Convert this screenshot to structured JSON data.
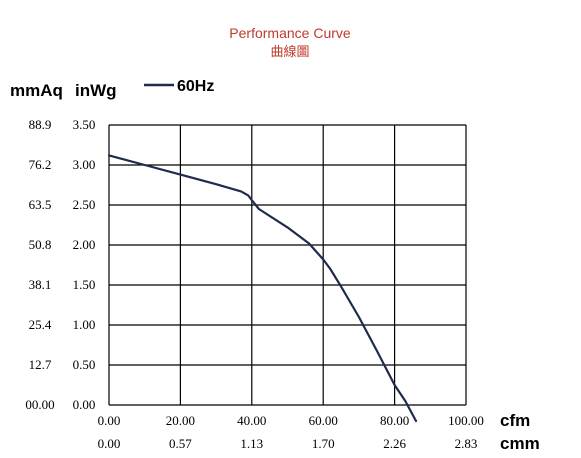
{
  "chart_data": {
    "type": "line",
    "title": "Performance Curve",
    "subtitle": "曲線圖",
    "title_color": "#c0392b",
    "line_color": "#1f2b4d",
    "grid": true,
    "legend_placement": "top-left",
    "series": [
      {
        "name": "60Hz",
        "x": [
          0,
          10,
          20,
          30,
          37,
          39,
          40,
          42,
          50,
          56,
          60,
          62,
          65,
          70,
          75,
          80,
          83,
          86
        ],
        "y": [
          3.12,
          3.0,
          2.88,
          2.76,
          2.67,
          2.62,
          2.56,
          2.45,
          2.22,
          2.02,
          1.82,
          1.7,
          1.48,
          1.1,
          0.68,
          0.25,
          0.05,
          -0.2
        ]
      }
    ],
    "xlim": [
      0,
      100
    ],
    "ylim": [
      0,
      3.5
    ],
    "x_ticks": [
      "0.00",
      "20.00",
      "40.00",
      "60.00",
      "80.00",
      "100.00"
    ],
    "x_ticks_cmm": [
      "0.00",
      "0.57",
      "1.13",
      "1.70",
      "2.26",
      "2.83"
    ],
    "y_ticks_inwg": [
      "3.50",
      "3.00",
      "2.50",
      "2.00",
      "1.50",
      "1.00",
      "0.50",
      "0.00"
    ],
    "y_ticks_mmaq": [
      "88.9",
      "76.2",
      "63.5",
      "50.8",
      "38.1",
      "25.4",
      "12.7",
      "00.00"
    ],
    "ylabel_mmaq": "mmAq",
    "ylabel_inwg": "inWg",
    "xlabel_cfm": "cfm",
    "xlabel_cmm": "cmm"
  }
}
